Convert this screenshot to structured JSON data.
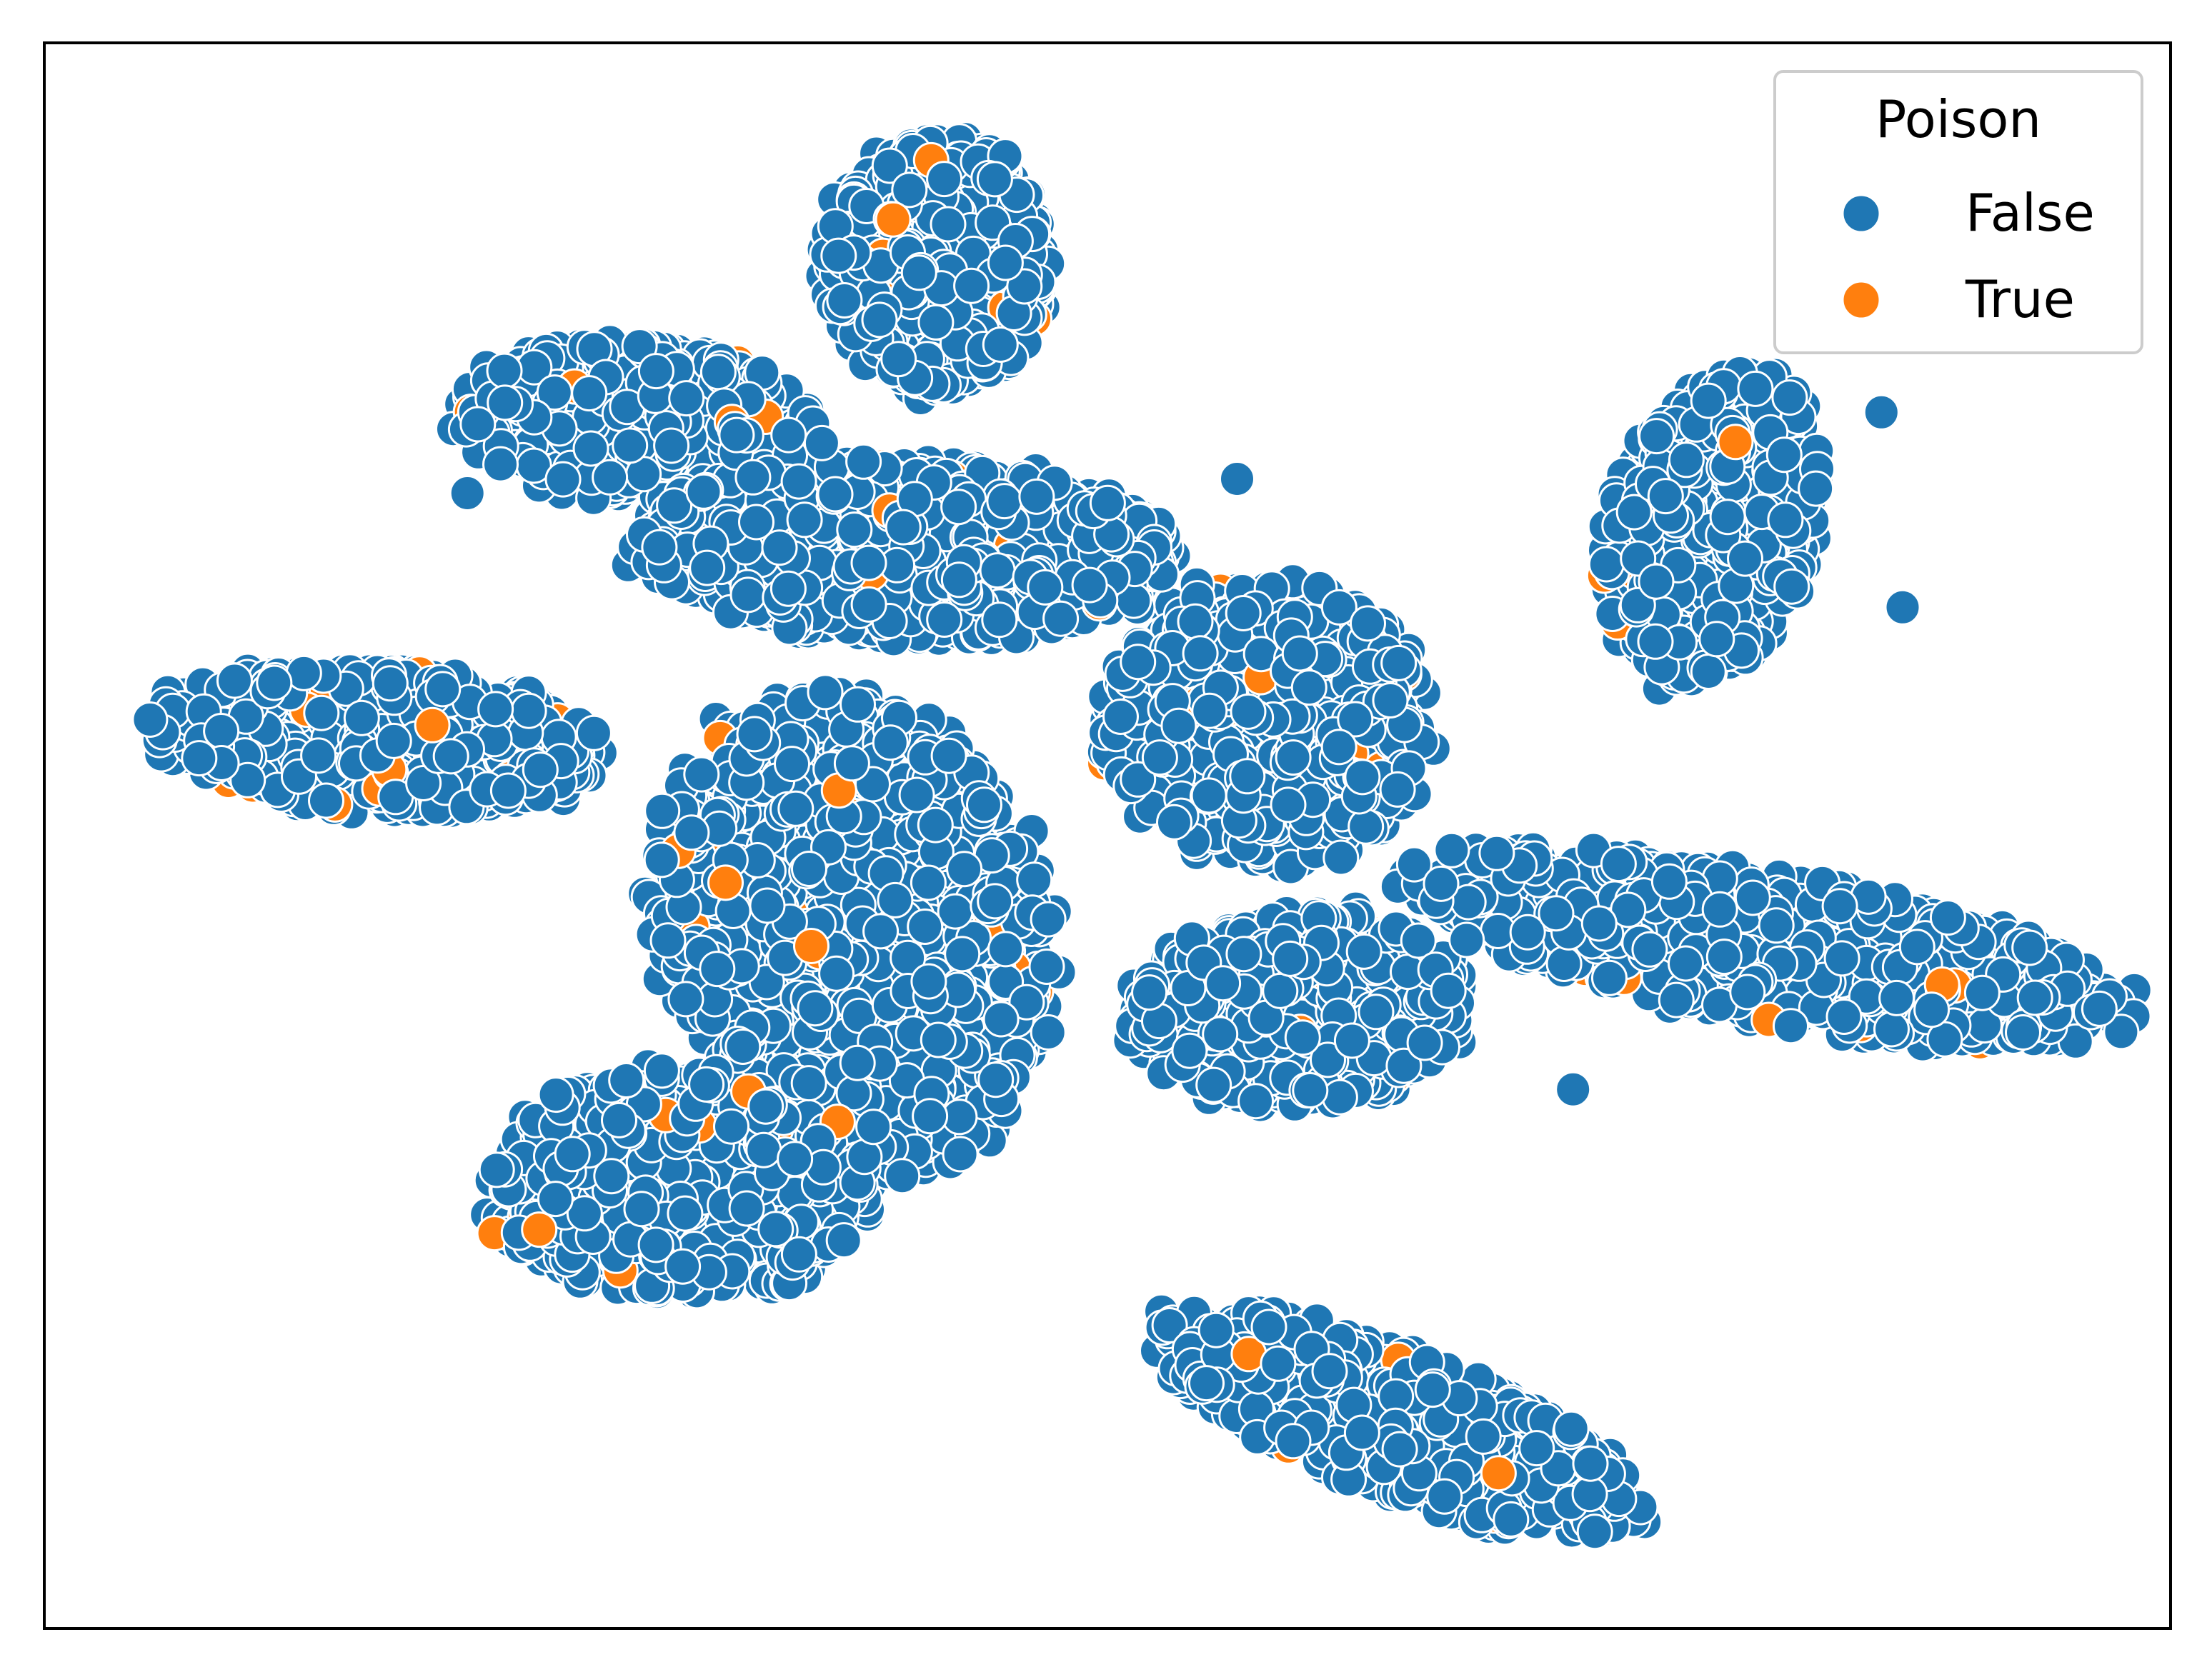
{
  "chart_data": {
    "type": "scatter",
    "title": "",
    "xlabel": "",
    "ylabel": "",
    "x_ticks": [],
    "y_ticks": [],
    "xlim": [
      0,
      100
    ],
    "ylim": [
      0,
      100
    ],
    "grid": false,
    "legend": {
      "title": "Poison",
      "placement": "top-right",
      "entries": [
        {
          "label": "False",
          "color": "#1f77b4"
        },
        {
          "label": "True",
          "color": "#ff7f0e"
        }
      ]
    },
    "colors": {
      "False": "#1f77b4",
      "True": "#ff7f0e"
    },
    "series": [
      {
        "name": "False",
        "color": "#1f77b4",
        "clusters": [
          {
            "cx": 40.5,
            "cy": 68.0,
            "rx": 12.5,
            "ry": 5.5,
            "angle": -3,
            "n": 1200
          },
          {
            "cx": 42.0,
            "cy": 86.0,
            "rx": 5.2,
            "ry": 8.0,
            "angle": 0,
            "n": 700
          },
          {
            "cx": 38.0,
            "cy": 44.0,
            "rx": 9.0,
            "ry": 15.0,
            "angle": 8,
            "n": 1300
          },
          {
            "cx": 30.0,
            "cy": 28.0,
            "rx": 9.0,
            "ry": 7.0,
            "angle": 0,
            "n": 700
          },
          {
            "cx": 28.0,
            "cy": 76.0,
            "rx": 8.5,
            "ry": 5.0,
            "angle": -8,
            "n": 600
          },
          {
            "cx": 15.5,
            "cy": 56.0,
            "rx": 10.5,
            "ry": 4.5,
            "angle": -6,
            "n": 650
          },
          {
            "cx": 57.5,
            "cy": 57.0,
            "rx": 7.5,
            "ry": 9.0,
            "angle": 0,
            "n": 700
          },
          {
            "cx": 59.0,
            "cy": 39.0,
            "rx": 8.0,
            "ry": 6.0,
            "angle": 10,
            "n": 550
          },
          {
            "cx": 78.5,
            "cy": 69.5,
            "rx": 4.8,
            "ry": 10.0,
            "angle": -10,
            "n": 650
          },
          {
            "cx": 81.0,
            "cy": 43.0,
            "rx": 17.0,
            "ry": 4.5,
            "angle": -14,
            "n": 950
          },
          {
            "cx": 63.5,
            "cy": 13.0,
            "rx": 12.5,
            "ry": 4.2,
            "angle": -28,
            "n": 650
          }
        ],
        "outliers": [
          {
            "x": 19.9,
            "y": 71.6
          },
          {
            "x": 26.6,
            "y": 72.6
          },
          {
            "x": 56.1,
            "y": 72.5
          },
          {
            "x": 86.4,
            "y": 76.7
          },
          {
            "x": 87.4,
            "y": 64.4
          },
          {
            "x": 71.9,
            "y": 34.0
          },
          {
            "x": 33.4,
            "y": 56.4
          }
        ]
      },
      {
        "name": "True",
        "color": "#ff7f0e",
        "n": 260,
        "sampling": "same clusters as False"
      }
    ]
  }
}
